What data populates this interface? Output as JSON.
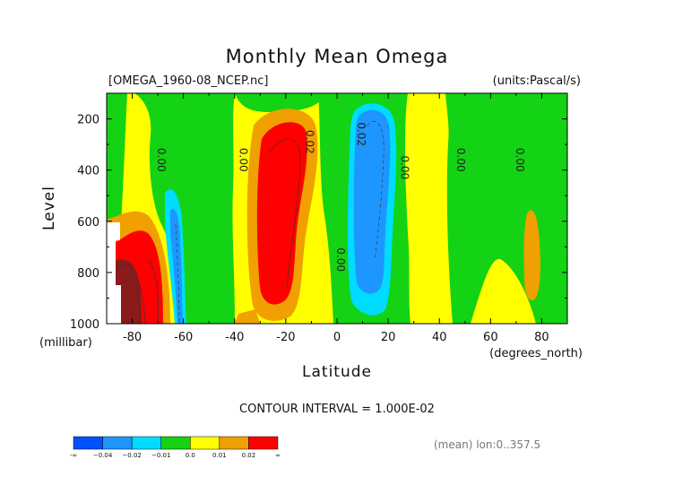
{
  "header": {
    "title": "Monthly Mean Omega",
    "filename": "[OMEGA_1960-08_NCEP.nc]",
    "units": "(units:Pascal/s)"
  },
  "axes": {
    "ylabel": "Level",
    "yunit": "(millibar)",
    "xlabel": "Latitude",
    "xunit": "(degrees_north)"
  },
  "footer": {
    "contour_interval": "CONTOUR INTERVAL = 1.000E-02",
    "mean_note": "(mean) lon:0..357.5"
  },
  "colors": {
    "dark_blue": "#0050ff",
    "blue": "#1e96ff",
    "light_blue": "#00dcff",
    "green": "#14d214",
    "yellow": "#ffff00",
    "orange": "#f0a000",
    "red": "#ff0000",
    "dark_red": "#8b1a1a"
  },
  "chart_data": {
    "type": "heatmap",
    "title": "Monthly Mean Omega",
    "xlabel": "Latitude",
    "ylabel": "Level",
    "xlim": [
      -90,
      90
    ],
    "ylim": [
      1000,
      100
    ],
    "x_ticks": [
      -80,
      -60,
      -40,
      -20,
      0,
      20,
      40,
      60,
      80
    ],
    "x_tick_labels": [
      "-80",
      "-60",
      "-40",
      "-20",
      "0",
      "20",
      "40",
      "60",
      "80"
    ],
    "y_ticks": [
      200,
      400,
      600,
      800,
      1000
    ],
    "y_tick_labels": [
      "200",
      "400",
      "600",
      "800",
      "1000"
    ],
    "contour_interval": 0.01,
    "contour_labels": [
      {
        "text": "0.00",
        "lat": -70,
        "level": 360
      },
      {
        "text": "0.00",
        "lat": -38,
        "level": 360
      },
      {
        "text": "0.02",
        "lat": -12,
        "level": 290
      },
      {
        "text": "0.02",
        "lat": 8,
        "level": 260
      },
      {
        "text": "0.00",
        "lat": 0,
        "level": 750
      },
      {
        "text": "0.00",
        "lat": 25,
        "level": 390
      },
      {
        "text": "0.00",
        "lat": 47,
        "level": 360
      },
      {
        "text": "0.00",
        "lat": 70,
        "level": 360
      }
    ],
    "colorbar": {
      "labels": [
        "-∞",
        "−0.04",
        "−0.02",
        "−0.01",
        "0.0",
        "0.01",
        "0.02",
        "∞"
      ],
      "bins": [
        {
          "range": "< -0.04",
          "color": "#0050ff"
        },
        {
          "range": "-0.04 to -0.02",
          "color": "#1e96ff"
        },
        {
          "range": "-0.02 to -0.01",
          "color": "#00dcff"
        },
        {
          "range": "-0.01 to 0.0",
          "color": "#14d214"
        },
        {
          "range": "0.0 to 0.01",
          "color": "#ffff00"
        },
        {
          "range": "0.01 to 0.02",
          "color": "#f0a000"
        },
        {
          "range": "> 0.02",
          "color": "#ff0000"
        }
      ]
    },
    "grid": false
  }
}
